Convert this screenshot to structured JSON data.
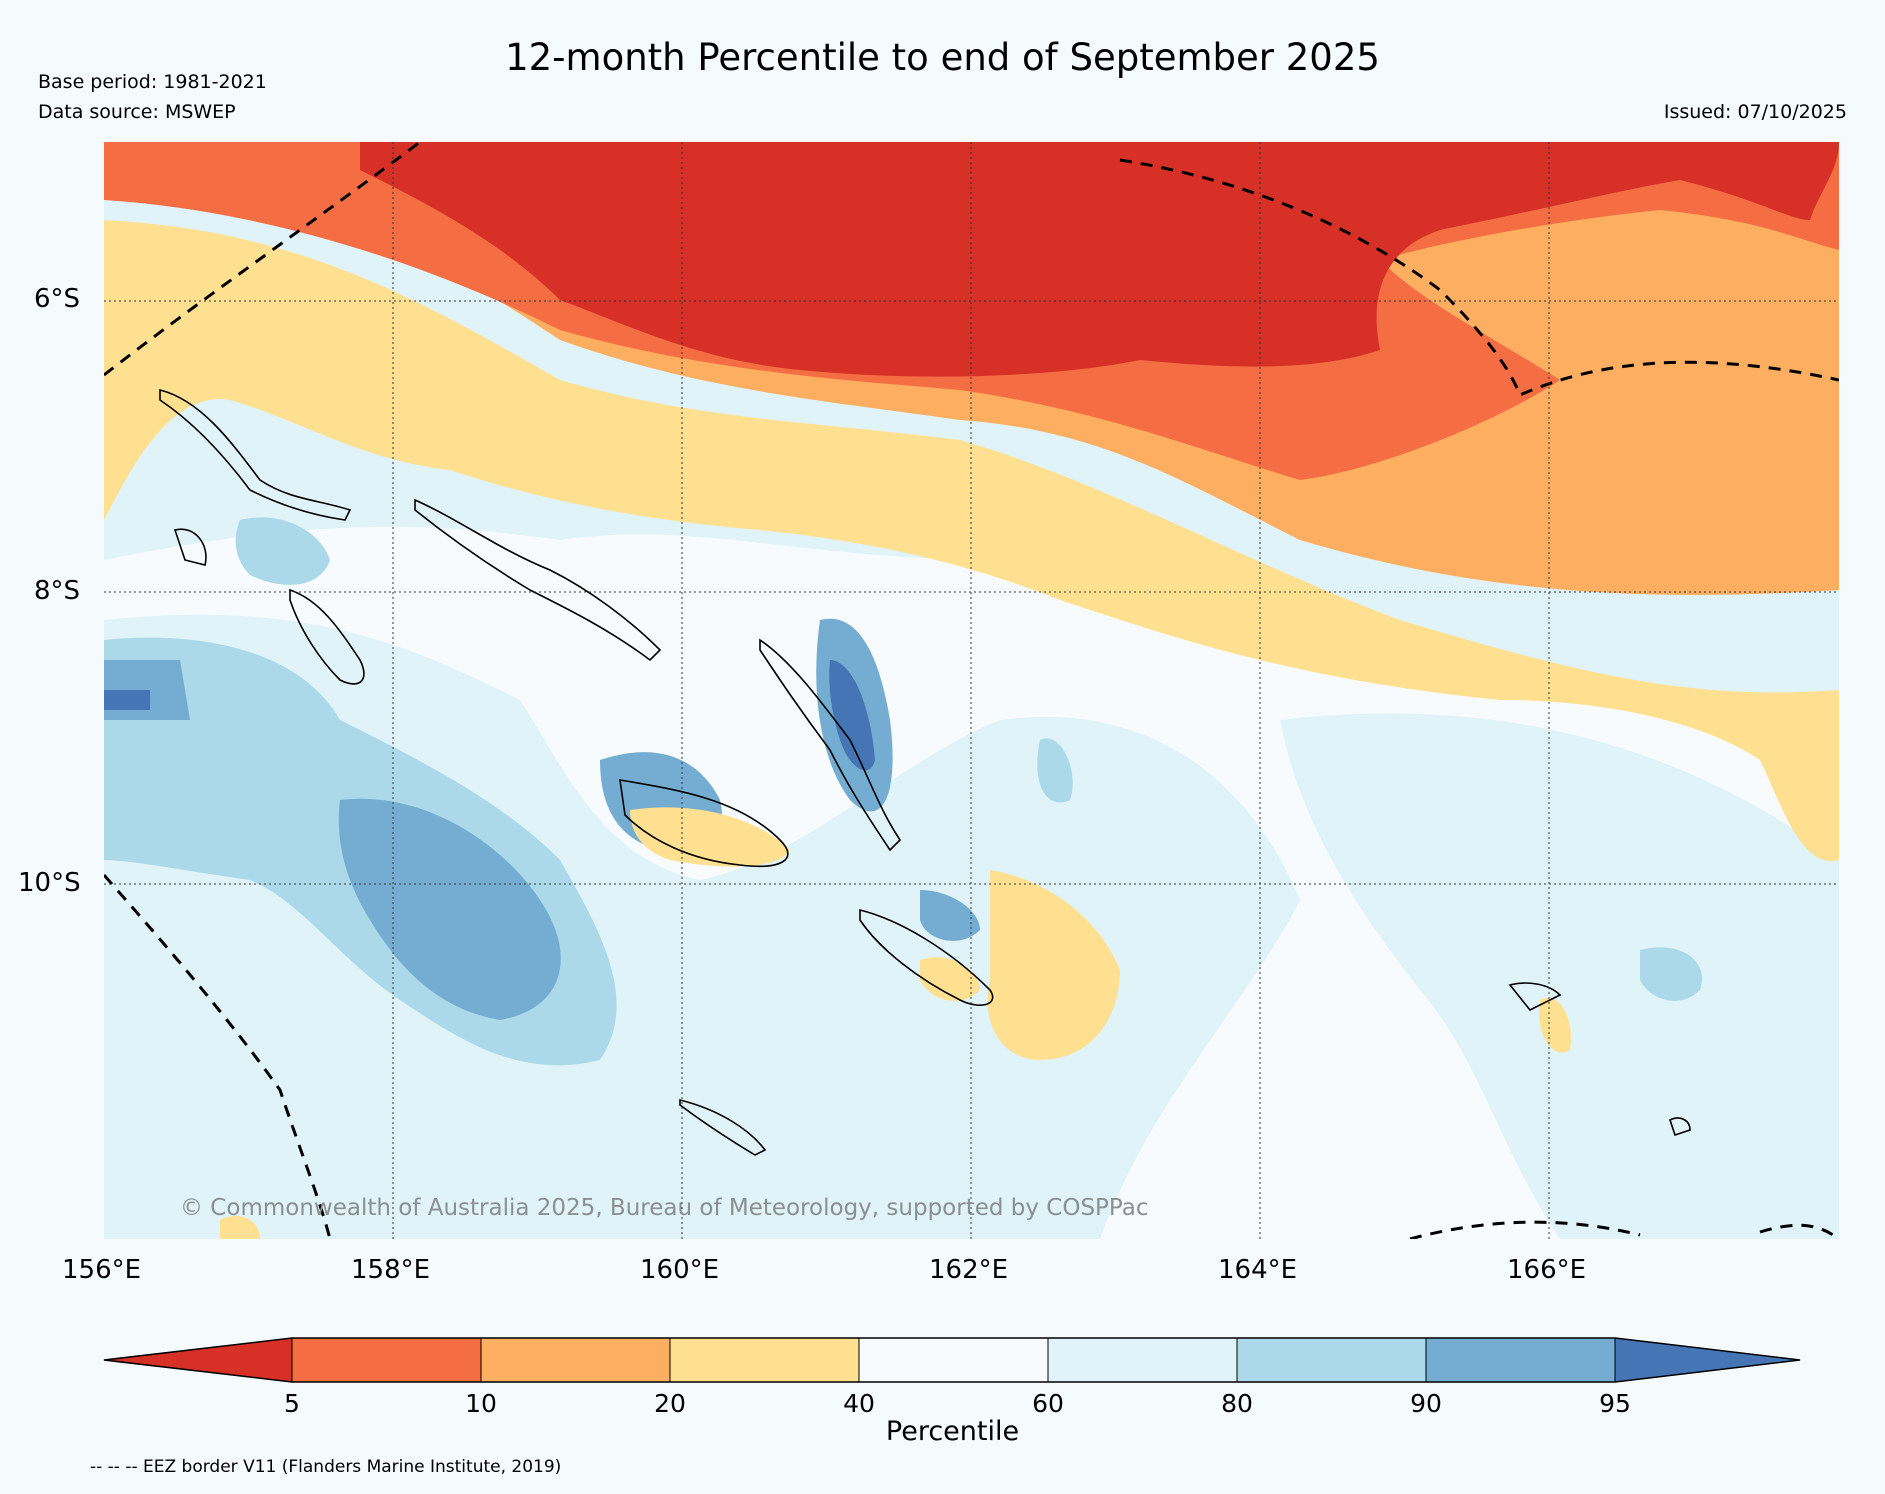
{
  "header": {
    "title": "12-month Percentile to end of September 2025",
    "base_period": "Base period: 1981-2021",
    "data_source": "Data source: MSWEP",
    "issued": "Issued: 07/10/2025"
  },
  "map": {
    "lat_labels": [
      "6°S",
      "8°S",
      "10°S"
    ],
    "lon_labels": [
      "156°E",
      "158°E",
      "160°E",
      "162°E",
      "164°E",
      "166°E"
    ],
    "copyright": "© Commonwealth of Australia 2025, Bureau of Meteorology, supported by COSPPac"
  },
  "colorbar": {
    "title": "Percentile",
    "ticks": [
      "5",
      "10",
      "20",
      "40",
      "60",
      "80",
      "90",
      "95"
    ],
    "colors": [
      "#d73027",
      "#f46d43",
      "#fdae61",
      "#fee090",
      "#f7fbfd",
      "#e0f3f8",
      "#abd9e9",
      "#74add1",
      "#4575b4"
    ]
  },
  "footer": {
    "eez_note": "-- -- -- EEZ border V11 (Flanders Marine Institute, 2019)"
  }
}
